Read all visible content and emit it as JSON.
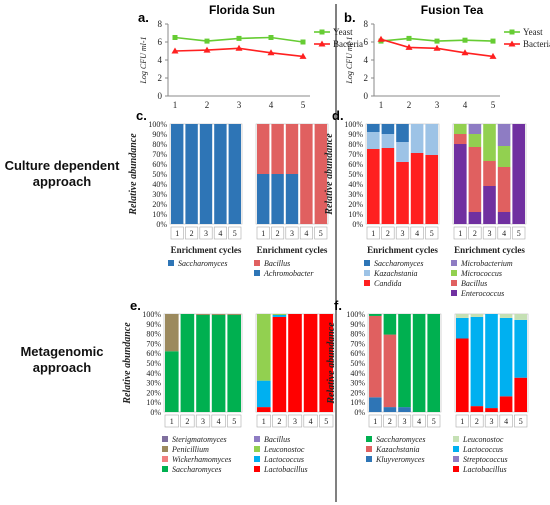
{
  "column_titles": [
    "Florida Sun",
    "Fusion Tea"
  ],
  "row_titles": [
    [
      "Culture dependent",
      "approach"
    ],
    [
      "Metagenomic",
      "approach"
    ]
  ],
  "chart_data": [
    {
      "panel": "a",
      "type": "line",
      "group": "Florida Sun",
      "x": [
        1,
        2,
        3,
        4,
        5
      ],
      "ylabel": "Log CFU ml-1",
      "ylim": [
        0,
        8
      ],
      "yticks": [
        0,
        2,
        4,
        6,
        8
      ],
      "series": [
        {
          "name": "Yeast",
          "values": [
            6.5,
            6.1,
            6.4,
            6.5,
            6.0
          ],
          "color": "#66cc33",
          "marker": "square"
        },
        {
          "name": "Bacteria",
          "values": [
            5.0,
            5.1,
            5.3,
            4.8,
            4.4
          ],
          "color": "#ff2020",
          "marker": "triangle"
        }
      ]
    },
    {
      "panel": "b",
      "type": "line",
      "group": "Fusion Tea",
      "x": [
        1,
        2,
        3,
        4,
        5
      ],
      "ylabel": "Log CFU ml-1",
      "ylim": [
        0,
        8
      ],
      "yticks": [
        0,
        2,
        4,
        6,
        8
      ],
      "series": [
        {
          "name": "Yeast",
          "values": [
            6.1,
            6.4,
            6.1,
            6.2,
            6.1
          ],
          "color": "#66cc33",
          "marker": "square"
        },
        {
          "name": "Bacteria",
          "values": [
            6.3,
            5.4,
            5.3,
            4.8,
            4.4
          ],
          "color": "#ff2020",
          "marker": "triangle"
        }
      ]
    },
    {
      "panel": "c",
      "type": "bar",
      "stacked": true,
      "group": "Florida Sun",
      "ylabel": "Relative abundance",
      "xlabel": "Enrichment cycles",
      "yticks": [
        "0%",
        "10%",
        "20%",
        "30%",
        "40%",
        "50%",
        "60%",
        "70%",
        "80%",
        "90%",
        "100%"
      ],
      "categories": [
        "1",
        "2",
        "3",
        "4",
        "5"
      ],
      "subplots": [
        {
          "series": [
            {
              "name": "Saccharomyces",
              "color": "#2e75b6",
              "values": [
                100,
                100,
                100,
                100,
                100
              ]
            }
          ]
        },
        {
          "series": [
            {
              "name": "Achromobacter",
              "color": "#2e75b6",
              "values": [
                50,
                50,
                50,
                0,
                0
              ]
            },
            {
              "name": "Bacillus",
              "color": "#e06060",
              "values": [
                50,
                50,
                50,
                100,
                100
              ]
            }
          ]
        }
      ],
      "legend": [
        [
          {
            "name": "Saccharomyces",
            "color": "#2e75b6"
          }
        ],
        [
          {
            "name": "Bacillus",
            "color": "#e06060"
          },
          {
            "name": "Achromobacter",
            "color": "#2e75b6"
          }
        ]
      ]
    },
    {
      "panel": "d",
      "type": "bar",
      "stacked": true,
      "group": "Fusion Tea",
      "ylabel": "Relative abundance",
      "xlabel": "Enrichment cycles",
      "yticks": [
        "0%",
        "10%",
        "20%",
        "30%",
        "40%",
        "50%",
        "60%",
        "70%",
        "80%",
        "90%",
        "100%"
      ],
      "categories": [
        "1",
        "2",
        "3",
        "4",
        "5"
      ],
      "subplots": [
        {
          "series": [
            {
              "name": "Candida",
              "color": "#ff2020",
              "values": [
                75,
                76,
                62,
                71,
                69
              ]
            },
            {
              "name": "Kazachstania",
              "color": "#9dc3e6",
              "values": [
                17,
                14,
                20,
                29,
                31
              ]
            },
            {
              "name": "Saccharomyces",
              "color": "#2e75b6",
              "values": [
                8,
                10,
                18,
                0,
                0
              ]
            }
          ]
        },
        {
          "series": [
            {
              "name": "Enterococcus",
              "color": "#7030a0",
              "values": [
                80,
                12,
                38,
                12,
                100
              ]
            },
            {
              "name": "Bacillus",
              "color": "#e06060",
              "values": [
                10,
                65,
                25,
                45,
                0
              ]
            },
            {
              "name": "Micrococcus",
              "color": "#92d050",
              "values": [
                10,
                13,
                37,
                21,
                0
              ]
            },
            {
              "name": "Microbacterium",
              "color": "#8e7cc3",
              "values": [
                0,
                10,
                0,
                22,
                0
              ]
            }
          ]
        }
      ],
      "legend": [
        [
          {
            "name": "Saccharomyces",
            "color": "#2e75b6"
          },
          {
            "name": "Kazachstania",
            "color": "#9dc3e6"
          },
          {
            "name": "Candida",
            "color": "#ff2020"
          }
        ],
        [
          {
            "name": "Microbacterium",
            "color": "#8e7cc3"
          },
          {
            "name": "Micrococcus",
            "color": "#92d050"
          },
          {
            "name": "Bacillus",
            "color": "#e06060"
          },
          {
            "name": "Enterococcus",
            "color": "#7030a0"
          }
        ]
      ]
    },
    {
      "panel": "e",
      "type": "bar",
      "stacked": true,
      "group": "Florida Sun",
      "ylabel": "Relative abundance",
      "yticks": [
        "0%",
        "10%",
        "20%",
        "30%",
        "40%",
        "50%",
        "60%",
        "70%",
        "80%",
        "90%",
        "100%"
      ],
      "categories": [
        "1",
        "2",
        "3",
        "4",
        "5"
      ],
      "subplots": [
        {
          "series": [
            {
              "name": "Saccharomyces",
              "color": "#00b050",
              "values": [
                62,
                100,
                99,
                99,
                99
              ]
            },
            {
              "name": "Penicillium",
              "color": "#9c8a5e",
              "values": [
                38,
                0,
                1,
                1,
                1
              ]
            }
          ]
        },
        {
          "series": [
            {
              "name": "Lactobacillus",
              "color": "#ff0000",
              "values": [
                5,
                97,
                100,
                100,
                100
              ]
            },
            {
              "name": "Lactococcus",
              "color": "#00b0f0",
              "values": [
                27,
                2,
                0,
                0,
                0
              ]
            },
            {
              "name": "Leuconostoc",
              "color": "#92d050",
              "values": [
                68,
                1,
                0,
                0,
                0
              ]
            }
          ]
        }
      ],
      "legend": [
        [
          {
            "name": "Sterigmatomyces",
            "color": "#7f6f9e"
          },
          {
            "name": "Penicillium",
            "color": "#9c8a5e"
          },
          {
            "name": "Wickerhamomyces",
            "color": "#f08080"
          },
          {
            "name": "Saccharomyces",
            "color": "#00b050"
          }
        ],
        [
          {
            "name": "Bacillus",
            "color": "#8e7cc3"
          },
          {
            "name": "Leuconostoc",
            "color": "#92d050"
          },
          {
            "name": "Lactococcus",
            "color": "#00b0f0"
          },
          {
            "name": "Lactobacillus",
            "color": "#ff0000"
          }
        ]
      ]
    },
    {
      "panel": "f",
      "type": "bar",
      "stacked": true,
      "group": "Fusion Tea",
      "ylabel": "Relative abundance",
      "yticks": [
        "0%",
        "10%",
        "20%",
        "30%",
        "40%",
        "50%",
        "60%",
        "70%",
        "80%",
        "90%",
        "100%"
      ],
      "categories": [
        "1",
        "2",
        "3",
        "4",
        "5"
      ],
      "subplots": [
        {
          "series": [
            {
              "name": "Kluyveromyces",
              "color": "#2e75b6",
              "values": [
                15,
                5,
                5,
                0,
                0
              ]
            },
            {
              "name": "Kazachstania",
              "color": "#e06060",
              "values": [
                83,
                74,
                0,
                0,
                0
              ]
            },
            {
              "name": "Saccharomyces",
              "color": "#00b050",
              "values": [
                2,
                21,
                95,
                100,
                100
              ]
            }
          ]
        },
        {
          "series": [
            {
              "name": "Lactobacillus",
              "color": "#ff0000",
              "values": [
                75,
                6,
                4,
                16,
                35
              ]
            },
            {
              "name": "Streptococcus",
              "color": "#8e7cc3",
              "values": [
                0,
                0,
                0,
                0,
                0
              ]
            },
            {
              "name": "Lactococcus",
              "color": "#00b0f0",
              "values": [
                21,
                91,
                96,
                80,
                59
              ]
            },
            {
              "name": "Leuconostoc",
              "color": "#c5e0b4",
              "values": [
                4,
                3,
                0,
                4,
                6
              ]
            }
          ]
        }
      ],
      "legend": [
        [
          {
            "name": "Saccharomyces",
            "color": "#00b050"
          },
          {
            "name": "Kazachstania",
            "color": "#e06060"
          },
          {
            "name": "Kluyveromyces",
            "color": "#2e75b6"
          }
        ],
        [
          {
            "name": "Leuconostoc",
            "color": "#c5e0b4"
          },
          {
            "name": "Lactococcus",
            "color": "#00b0f0"
          },
          {
            "name": "Streptococcus",
            "color": "#8e7cc3"
          },
          {
            "name": "Lactobacillus",
            "color": "#ff0000"
          }
        ]
      ]
    }
  ]
}
